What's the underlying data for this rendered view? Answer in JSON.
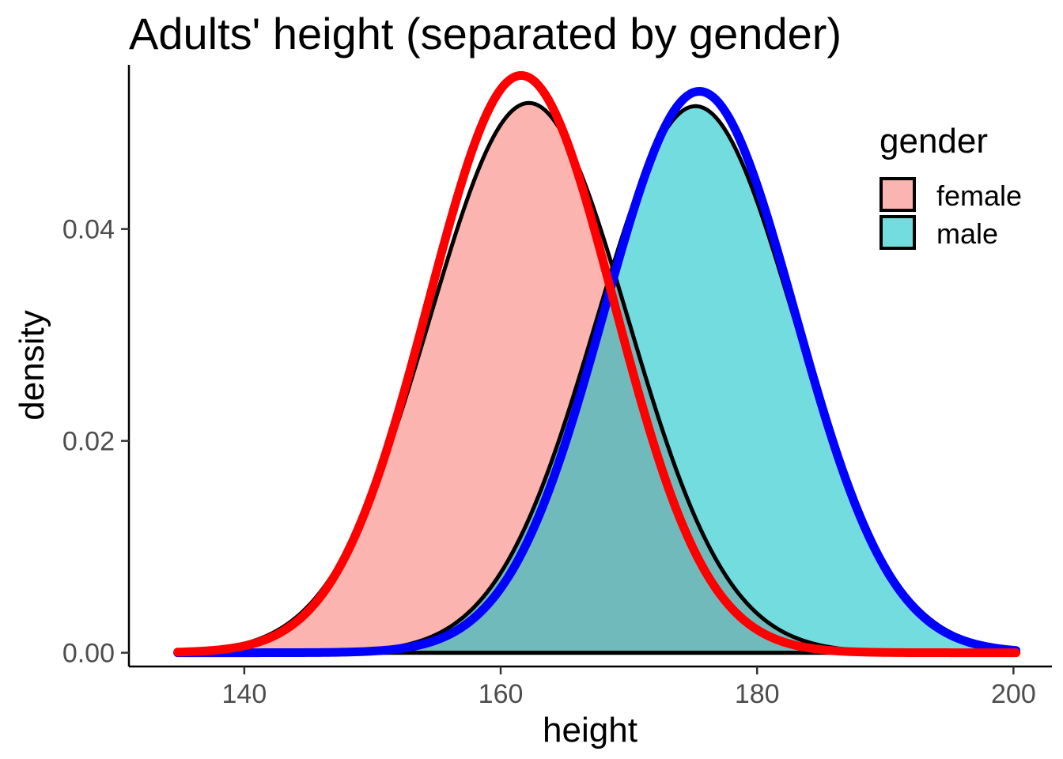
{
  "chart_data": {
    "type": "area",
    "title": "Adults' height (separated by gender)",
    "xlabel": "height",
    "ylabel": "density",
    "xlim": [
      131,
      203
    ],
    "ylim": [
      -0.0013,
      0.0555
    ],
    "x_ticks": [
      140,
      160,
      180,
      200
    ],
    "x_tick_labels": [
      "140",
      "160",
      "180",
      "200"
    ],
    "y_ticks": [
      0.0,
      0.02,
      0.04
    ],
    "y_tick_labels": [
      "0.00",
      "0.02",
      "0.04"
    ],
    "grid": false,
    "legend": {
      "title": "gender",
      "position": "top-right",
      "entries": [
        {
          "label": "female",
          "fill": "#F8766D"
        },
        {
          "label": "male",
          "fill": "#00BFC4"
        }
      ]
    },
    "series": [
      {
        "name": "female",
        "density_curve": {
          "mean": 162.2,
          "sd": 7.75,
          "peak": 0.0519,
          "line_color": "#000000"
        },
        "normal_overlay": {
          "mean": 161.6,
          "sd": 7.25,
          "peak": 0.0545,
          "line_color": "#FF0000"
        },
        "fill": "#F8766D",
        "x_range": [
          134.8,
          200.2
        ]
      },
      {
        "name": "male",
        "density_curve": {
          "mean": 175.2,
          "sd": 7.75,
          "peak": 0.0516,
          "line_color": "#000000"
        },
        "normal_overlay": {
          "mean": 175.5,
          "sd": 7.45,
          "peak": 0.053,
          "line_color": "#0000FF"
        },
        "fill": "#00BFC4",
        "x_range": [
          134.8,
          200.2
        ]
      }
    ]
  }
}
